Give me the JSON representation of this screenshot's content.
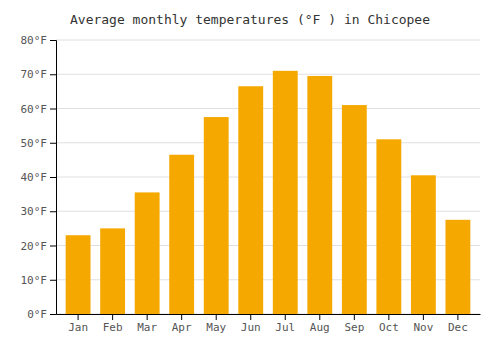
{
  "chart_data": {
    "type": "bar",
    "title": "Average monthly temperatures (°F ) in Chicopee",
    "categories": [
      "Jan",
      "Feb",
      "Mar",
      "Apr",
      "May",
      "Jun",
      "Jul",
      "Aug",
      "Sep",
      "Oct",
      "Nov",
      "Dec"
    ],
    "values": [
      23,
      25,
      35.5,
      46.5,
      57.5,
      66.5,
      71,
      69.5,
      61,
      51,
      40.5,
      27.5
    ],
    "color": "#F5A800",
    "ylim": [
      0,
      80
    ],
    "yticks": [
      {
        "value": 0,
        "label": "0°F"
      },
      {
        "value": 10,
        "label": "10°F"
      },
      {
        "value": 20,
        "label": "20°F"
      },
      {
        "value": 30,
        "label": "30°F"
      },
      {
        "value": 40,
        "label": "40°F"
      },
      {
        "value": 50,
        "label": "50°F"
      },
      {
        "value": 60,
        "label": "60°F"
      },
      {
        "value": 70,
        "label": "70°F"
      },
      {
        "value": 80,
        "label": "80°F"
      }
    ],
    "grid": true
  }
}
